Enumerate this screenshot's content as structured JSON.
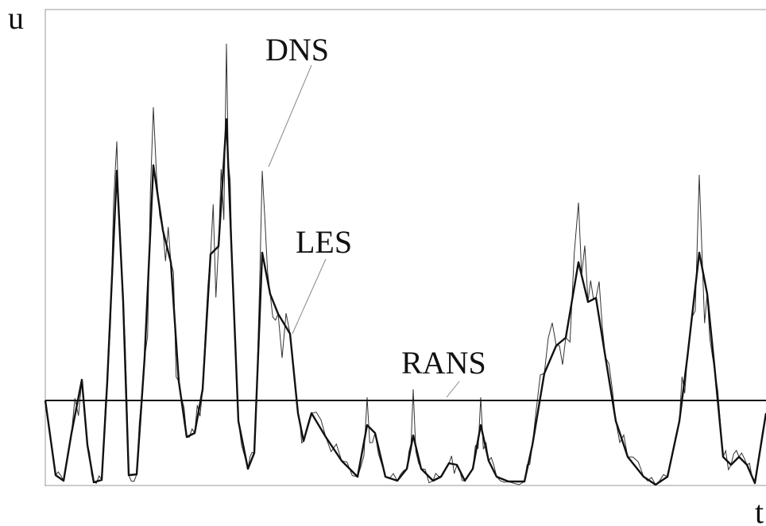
{
  "axes": {
    "y_label": "u",
    "x_label": "t"
  },
  "annotations": {
    "dns": "DNS",
    "les": "LES",
    "rans": "RANS"
  }
}
